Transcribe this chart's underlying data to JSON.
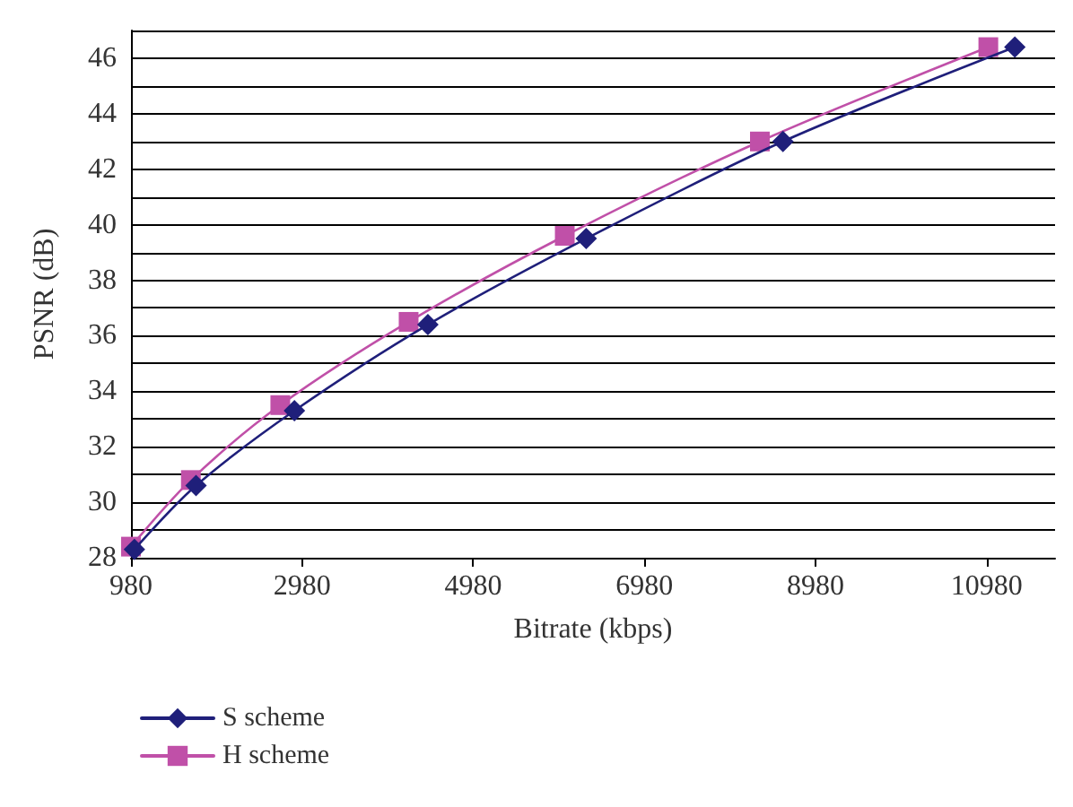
{
  "chart_data": {
    "type": "line",
    "xlabel": "Bitrate (kbps)",
    "ylabel": "PSNR (dB)",
    "xlim": [
      980,
      11780
    ],
    "xticks": [
      980,
      2980,
      4980,
      6980,
      8980,
      10980
    ],
    "ylim": [
      28,
      47
    ],
    "yticks": [
      28,
      {
        "value": 29,
        "label": null
      },
      30,
      {
        "value": 31,
        "label": null
      },
      32,
      {
        "value": 33,
        "label": null
      },
      34,
      {
        "value": 35,
        "label": null
      },
      36,
      {
        "value": 37,
        "label": null
      },
      38,
      {
        "value": 39,
        "label": null
      },
      40,
      {
        "value": 41,
        "label": null
      },
      42,
      {
        "value": 43,
        "label": null
      },
      44,
      {
        "value": 45,
        "label": null
      },
      46,
      {
        "value": 47,
        "label": null
      }
    ],
    "grid": "y",
    "legend": "bottom left",
    "line_style": "solid",
    "series": [
      {
        "name": "S scheme",
        "color": "#1f1f7a",
        "marker": "diamond",
        "x": [
          1020,
          1740,
          2890,
          4450,
          6300,
          8600,
          11310
        ],
        "values": [
          28.3,
          30.6,
          33.3,
          36.4,
          39.5,
          43.0,
          46.4
        ]
      },
      {
        "name": "H scheme",
        "color": "#c050a8",
        "marker": "square",
        "x": [
          980,
          1680,
          2725,
          4225,
          6050,
          8330,
          11000
        ],
        "values": [
          28.4,
          30.8,
          33.5,
          36.5,
          39.6,
          43.0,
          46.4
        ]
      }
    ]
  }
}
